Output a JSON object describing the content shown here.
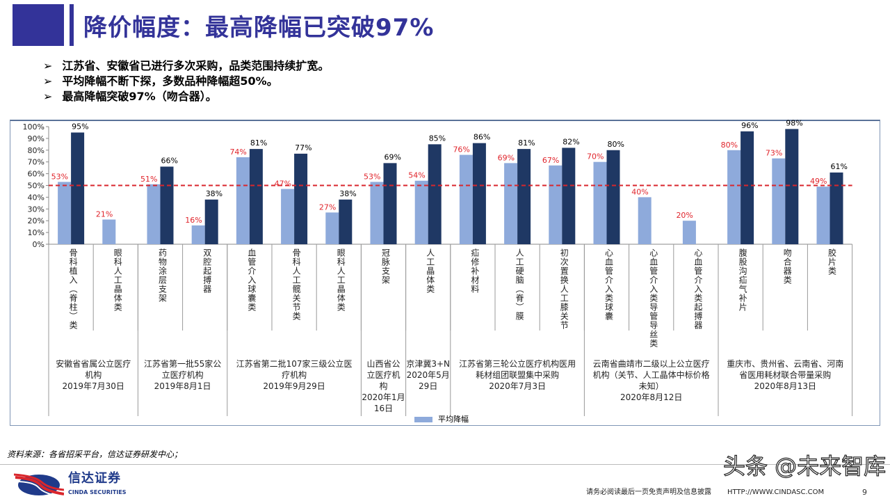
{
  "title": "降价幅度：最高降幅已突破97%",
  "bullets": [
    "江苏省、安徽省已进行多次采购，品类范围持续扩宽。",
    "平均降幅不断下探，多数品种降幅超50%。",
    "最高降幅突破97%（吻合器）。"
  ],
  "bullet_marker": "➢",
  "chart_data": {
    "type": "bar",
    "categories": [
      "骨科植入(脊柱)类",
      "眼科人工晶体类",
      "药物涂层支架",
      "双腔起搏器",
      "血管介入球囊类",
      "骨科人工髋关节类",
      "眼科人工晶体类",
      "冠脉支架",
      "人工晶体类",
      "疝修补材料",
      "人工硬脑(脊)膜",
      "初次置换人工膝关节",
      "心血管介入类球囊",
      "心血管介入类导管导丝类",
      "心血管介入类起搏器",
      "腹股沟疝气补片",
      "吻合器类",
      "胶片类"
    ],
    "series": [
      {
        "name": "平均降幅",
        "color": "#8eaadb",
        "label_color": "#e0242b",
        "values": [
          53,
          21,
          51,
          16,
          74,
          47,
          27,
          53,
          54,
          76,
          69,
          67,
          70,
          40,
          20,
          80,
          73,
          49
        ]
      },
      {
        "color": "#1f3864",
        "label_color": "#000000",
        "values": [
          95,
          null,
          66,
          38,
          81,
          77,
          38,
          69,
          85,
          86,
          81,
          82,
          80,
          null,
          null,
          96,
          98,
          61
        ]
      }
    ],
    "reference_line": {
      "value": 50,
      "color": "#d9262c",
      "style": "dashed"
    },
    "yticks": [
      "0%",
      "10%",
      "20%",
      "30%",
      "40%",
      "50%",
      "60%",
      "70%",
      "80%",
      "90%",
      "100%"
    ],
    "ylim": [
      0,
      100
    ],
    "groups": [
      {
        "span": 2,
        "lines": [
          "安徽省省属公立医疗",
          "机构",
          "2019年7月30日"
        ]
      },
      {
        "span": 2,
        "lines": [
          "江苏省第一批55家公",
          "立医疗机构",
          "2019年8月1日"
        ]
      },
      {
        "span": 3,
        "lines": [
          "江苏省第二批107家三级公立医",
          "疗机构",
          "2019年9月29日"
        ]
      },
      {
        "span": 1,
        "lines": [
          "山西省公",
          "立医疗机",
          "构",
          "2020年1月",
          "16日"
        ]
      },
      {
        "span": 1,
        "lines": [
          "京津冀3+N",
          "2020年5月",
          "29日"
        ]
      },
      {
        "span": 3,
        "lines": [
          "江苏省第三轮公立医疗机构医用",
          "耗材组团联盟集中采购",
          "2020年7月3日"
        ]
      },
      {
        "span": 3,
        "lines": [
          "云南省曲靖市二级以上公立医疗",
          "机构（关节、人工晶体中标价格",
          "未知）",
          "2020年8月12日"
        ]
      },
      {
        "span": 3,
        "lines": [
          "重庆市、贵州省、云南省、河南",
          "省医用耗材联合带量采购",
          "2020年8月13日"
        ]
      }
    ],
    "legend": "bottom"
  },
  "source": "资料来源：各省招采平台，信达证券研发中心；",
  "logo": {
    "cn": "信达证券",
    "en": "CINDA SECURITIES"
  },
  "footer": {
    "disclaimer": "请务必阅读最后一页免责声明及信息披露",
    "url": "HTTP://WWW.CINDASC.COM",
    "page": "9"
  },
  "watermark": "头条 @未来智库"
}
